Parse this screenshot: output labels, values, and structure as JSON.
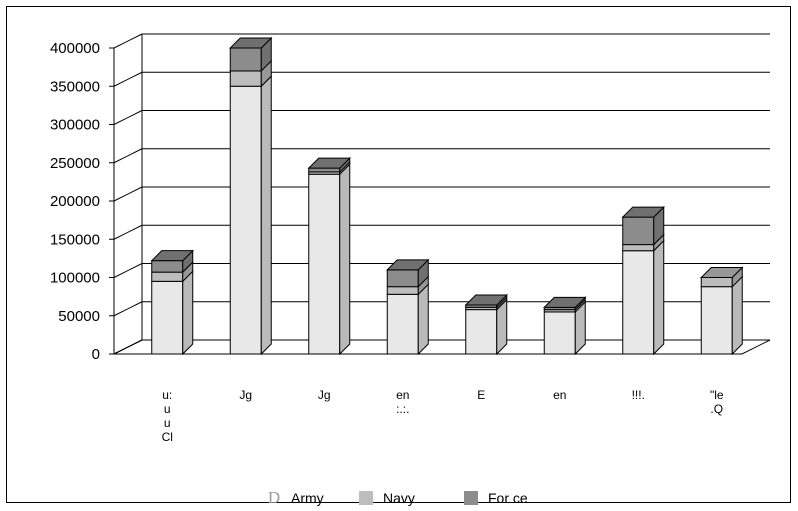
{
  "chart_data": {
    "type": "bar",
    "stacked": true,
    "three_d": true,
    "categories": [
      [
        "u:",
        "u",
        "u",
        "Cl"
      ],
      [
        "Jg"
      ],
      [
        "Jg"
      ],
      [
        "en",
        ":.:."
      ],
      [
        "E"
      ],
      [
        "en"
      ],
      [
        "!!!."
      ],
      [
        "\"le",
        ".Q"
      ]
    ],
    "series": [
      {
        "name": "Army",
        "values": [
          95000,
          350000,
          235000,
          78000,
          58000,
          55000,
          135000,
          88000
        ]
      },
      {
        "name": "Navy",
        "values": [
          12000,
          20000,
          3000,
          10000,
          3000,
          3000,
          8000,
          12000
        ]
      },
      {
        "name": "For ce",
        "values": [
          15000,
          30000,
          5000,
          22000,
          3000,
          3000,
          36000,
          0
        ]
      }
    ],
    "yticks": [
      "0",
      "50000",
      "100000",
      "150000",
      "200000",
      "250000",
      "300000",
      "350000",
      "400000"
    ],
    "ylim": [
      0,
      400000
    ],
    "grid": true,
    "legend": "bottom",
    "colors": {
      "Army": "#e8e8e8",
      "Navy": "#bdbdbd",
      "For ce": "#8c8c8c"
    }
  },
  "legend": {
    "army_marker": "D",
    "army": "Army",
    "navy": "Navy",
    "force": "For ce"
  }
}
